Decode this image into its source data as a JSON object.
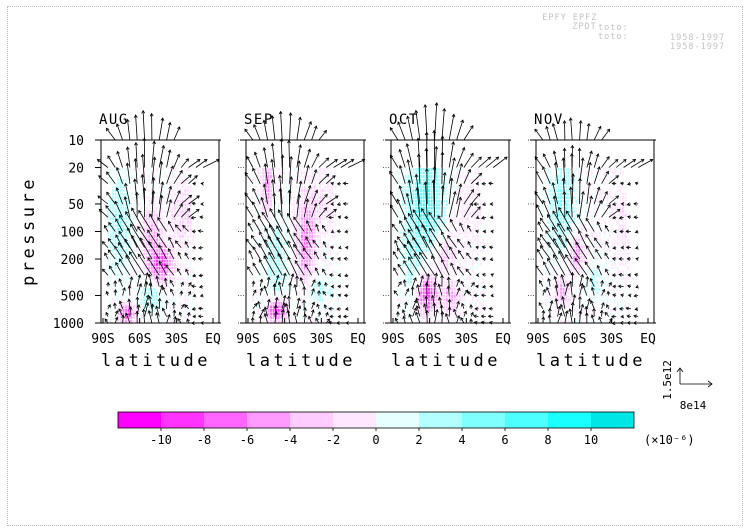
{
  "header": {
    "line1_left": "EPFY EPFZ",
    "line1_mid": "toto:",
    "line1_right": "1958-1997",
    "line2_left": "ZPDT",
    "line2_mid": "toto:",
    "line2_right": "1958-1997"
  },
  "chart_data": {
    "type": "heatmap",
    "panels": [
      "AUG",
      "SEP",
      "OCT",
      "NOV"
    ],
    "xlabel": "latitude",
    "ylabel": "pressure",
    "x_tick_labels": [
      "90S",
      "60S",
      "30S",
      "EQ"
    ],
    "y_tick_labels": [
      "10",
      "20",
      "50",
      "100",
      "200",
      "500",
      "1000"
    ],
    "y_ticks": [
      10,
      20,
      50,
      100,
      200,
      500,
      1000
    ],
    "xlim": [
      -90,
      0
    ],
    "ylim": [
      1000,
      10
    ],
    "y_scale": "log",
    "colorbar": {
      "tick_labels": [
        "-10",
        "-8",
        "-6",
        "-4",
        "-2",
        "0",
        "2",
        "4",
        "6",
        "8",
        "10"
      ],
      "unit_label": "(×10⁻⁶)",
      "levels": [
        -12,
        -10,
        -8,
        -6,
        -4,
        -2,
        0,
        2,
        4,
        6,
        8,
        10
      ],
      "colors": [
        "#ff00ff",
        "#ff33ff",
        "#ff66ff",
        "#ff99ff",
        "#ffccff",
        "#ffe8ff",
        "#e8ffff",
        "#b3ffff",
        "#80ffff",
        "#4dffff",
        "#1affff",
        "#00e6e6"
      ]
    },
    "reference_vector": {
      "vertical_label": "1.5e12",
      "horizontal_label": "8e14"
    },
    "grid": false
  }
}
